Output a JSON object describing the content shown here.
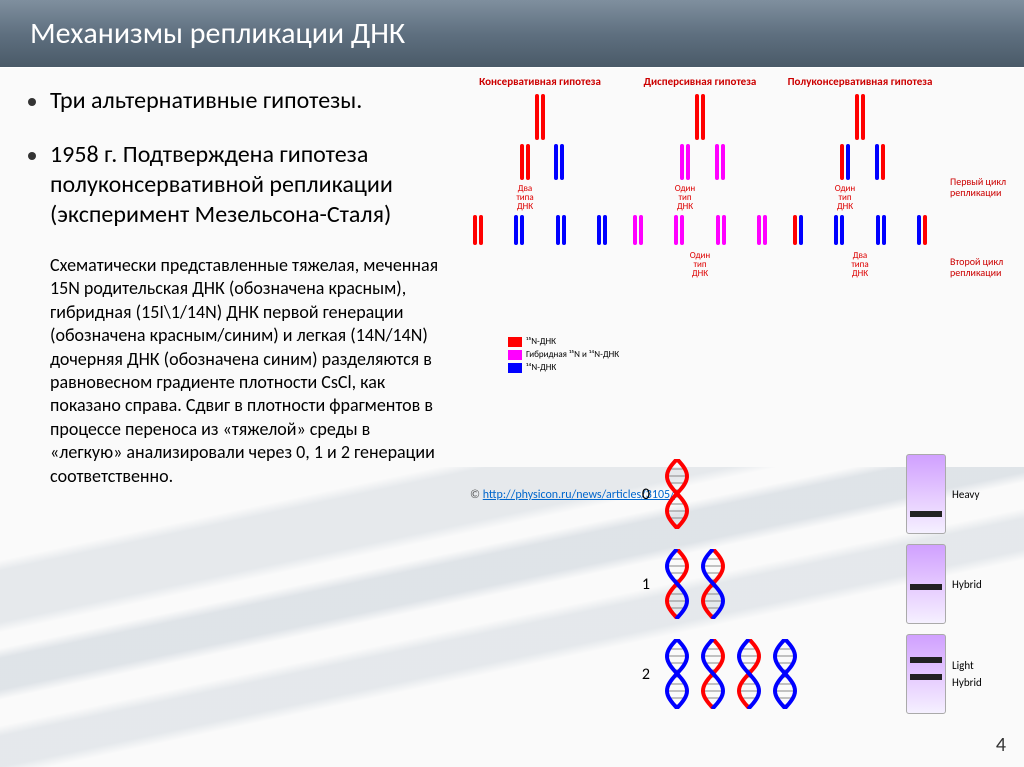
{
  "title": "Механизмы репликации ДНК",
  "bullets": {
    "b1": "Три альтернативные гипотезы.",
    "b2": "1958 г. Подтверждена гипотеза полуконсервативной репликации (эксперимент Мезельсона-Сталя)"
  },
  "description": "Схематически представленные тяжелая, меченная 15N родительская ДНК (обозначена красным), гибридная (15I\\1/14N) ДНК первой генерации (обозначена красным/синим) и легкая (14N/14N) дочерняя ДНК (обозначена синим) разделяются в равновесном градиенте плотности CsCl, как показано справа. Сдвиг в плотности фрагментов в процессе переноса из «тяжелой» среды в «легкую» анализировали через 0, 1 и 2 генерации соответственно.",
  "hypotheses": {
    "h1": "Консервативная гипотеза",
    "h2": "Дисперсивная гипотеза",
    "h3": "Полуконсервативная гипотеза"
  },
  "labels": {
    "two_types": "Два\nтипа\nДНК",
    "one_type": "Один\nтип\nДНК",
    "cycle1": "Первый цикл репликации",
    "cycle2": "Второй цикл репликации"
  },
  "legend": {
    "l1": "¹⁵N-ДНК",
    "l2": "Гибридная ¹⁵N и ¹⁴N-ДНК",
    "l3": "¹⁴N-ДНК"
  },
  "colors": {
    "red": "#ff0000",
    "blue": "#0000ff",
    "magenta": "#ff00ff",
    "title_text": "#c00000",
    "link": "#0066cc"
  },
  "credit": {
    "prefix": "© ",
    "url_text": "http://physicon.ru/news/articles/3105/"
  },
  "experiment": {
    "rows": [
      {
        "gen": "0",
        "helices": [
          [
            "#ff0000",
            "#ff0000"
          ]
        ],
        "bands": [
          {
            "pos": 72,
            "label": "Heavy"
          }
        ]
      },
      {
        "gen": "1",
        "helices": [
          [
            "#ff0000",
            "#0000ff"
          ],
          [
            "#ff0000",
            "#0000ff"
          ]
        ],
        "bands": [
          {
            "pos": 50,
            "label": "Hybrid"
          }
        ]
      },
      {
        "gen": "2",
        "helices": [
          [
            "#0000ff",
            "#0000ff"
          ],
          [
            "#ff0000",
            "#0000ff"
          ],
          [
            "#ff0000",
            "#0000ff"
          ],
          [
            "#0000ff",
            "#0000ff"
          ]
        ],
        "bands": [
          {
            "pos": 28,
            "label": "Light"
          },
          {
            "pos": 50,
            "label": "Hybrid"
          }
        ]
      }
    ]
  },
  "page_number": "4"
}
